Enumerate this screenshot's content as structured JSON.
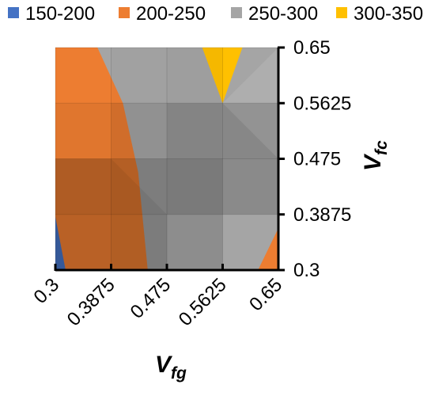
{
  "chart_data": {
    "type": "area",
    "subtype": "3D surface contour (top view)",
    "legend": {
      "placement": "top",
      "entries": [
        {
          "label": "150-200",
          "color": "#4472C4"
        },
        {
          "label": "200-250",
          "color": "#ED7D31"
        },
        {
          "label": "250-300",
          "color": "#A5A5A5"
        },
        {
          "label": "300-350",
          "color": "#FFC000"
        }
      ]
    },
    "x_axis": {
      "title_main": "V",
      "title_sub": "fg",
      "ticks": [
        "0.3",
        "0.3875",
        "0.475",
        "0.5625",
        "0.65"
      ],
      "range": [
        0.3,
        0.65
      ],
      "tick_rotation": -45
    },
    "y_axis": {
      "title_main": "V",
      "title_sub": "fc",
      "ticks": [
        "0.3",
        "0.3875",
        "0.475",
        "0.5625",
        "0.65"
      ],
      "range": [
        0.3,
        0.65
      ],
      "side": "right",
      "title_rotation": -90
    },
    "grid": true,
    "regions": [
      {
        "band": "250-300",
        "color": "#A5A5A5",
        "polygon": [
          [
            0.3,
            0.3
          ],
          [
            0.65,
            0.3
          ],
          [
            0.65,
            0.65
          ],
          [
            0.3,
            0.65
          ]
        ]
      },
      {
        "band": "200-250",
        "color": "#ED7D31",
        "polygon": [
          [
            0.3,
            0.3
          ],
          [
            0.3,
            0.65
          ],
          [
            0.366,
            0.65
          ],
          [
            0.406,
            0.5625
          ],
          [
            0.43,
            0.454
          ],
          [
            0.445,
            0.3
          ]
        ]
      },
      {
        "band": "150-200",
        "color": "#4472C4",
        "polygon": [
          [
            0.3,
            0.3
          ],
          [
            0.3,
            0.384
          ],
          [
            0.316,
            0.3
          ]
        ]
      },
      {
        "band": "200-250",
        "color": "#ED7D31",
        "polygon": [
          [
            0.65,
            0.3
          ],
          [
            0.65,
            0.366
          ],
          [
            0.618,
            0.3
          ]
        ]
      },
      {
        "band": "300-350",
        "color": "#FFC000",
        "polygon": [
          [
            0.5305,
            0.65
          ],
          [
            0.5625,
            0.5625
          ],
          [
            0.5935,
            0.65
          ]
        ]
      }
    ]
  }
}
